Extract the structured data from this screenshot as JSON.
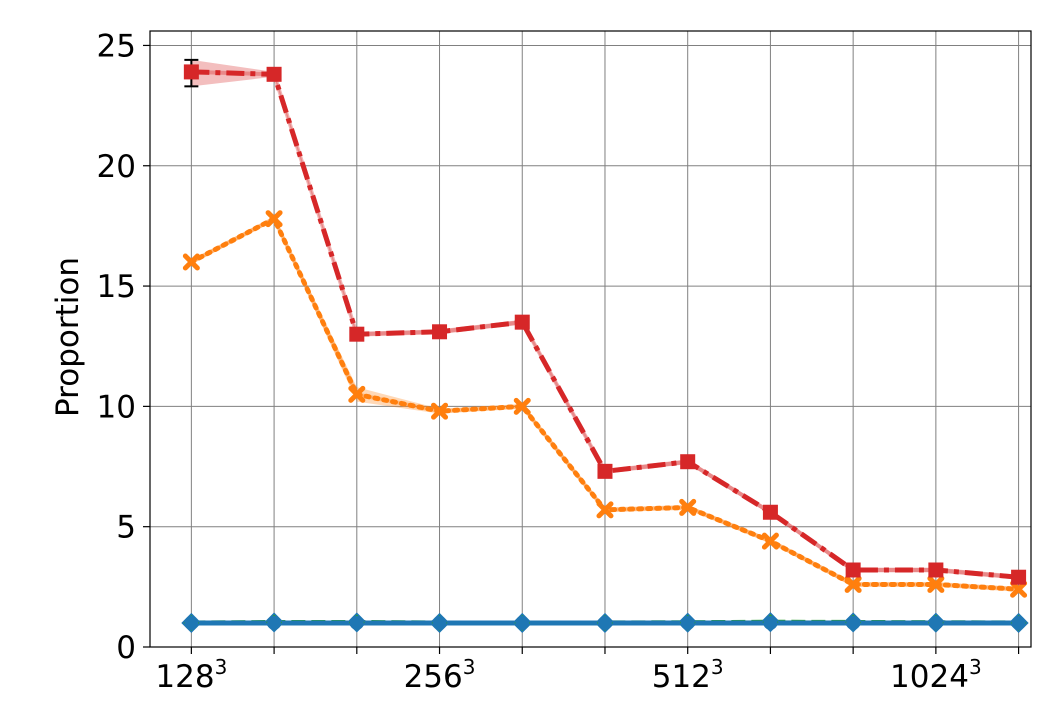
{
  "chart_data": {
    "type": "line",
    "title": "",
    "xlabel": "",
    "ylabel": "Proportion",
    "ylim": [
      0,
      25.6
    ],
    "yticks": [
      0,
      5,
      10,
      15,
      20,
      25
    ],
    "x_positions": [
      0,
      1,
      2,
      3,
      4,
      5,
      6,
      7,
      8,
      9,
      10
    ],
    "xlim": [
      -0.5,
      10.15
    ],
    "xtick_labels": [
      {
        "x": 0,
        "base": "128",
        "exp": "3"
      },
      {
        "x": 3,
        "base": "256",
        "exp": "3"
      },
      {
        "x": 6,
        "base": "512",
        "exp": "3"
      },
      {
        "x": 9,
        "base": "1024",
        "exp": "3"
      }
    ],
    "minor_xticks": [
      1,
      2,
      4,
      5,
      7,
      8,
      10
    ],
    "grid": true,
    "series": [
      {
        "color": "#d62728",
        "dash": "dashdot",
        "marker": "square",
        "values": [
          23.9,
          23.8,
          13.0,
          13.1,
          13.5,
          7.3,
          7.7,
          5.6,
          3.2,
          3.2,
          2.9
        ],
        "band": [
          [
            23.3,
            24.4
          ],
          [
            23.7,
            23.9
          ],
          [
            12.9,
            13.1
          ],
          [
            13.0,
            13.2
          ],
          [
            13.4,
            13.6
          ],
          [
            7.2,
            7.4
          ],
          [
            7.6,
            7.8
          ],
          [
            5.5,
            5.7
          ],
          [
            3.1,
            3.3
          ],
          [
            3.1,
            3.3
          ],
          [
            2.8,
            3.0
          ]
        ],
        "errorbar_index": 0,
        "errorbar": [
          23.3,
          24.4
        ]
      },
      {
        "color": "#ff7f0e",
        "dash": "dotted",
        "marker": "x",
        "values": [
          16.0,
          17.8,
          10.5,
          9.8,
          10.0,
          5.7,
          5.8,
          4.4,
          2.6,
          2.6,
          2.4
        ],
        "band": [
          [
            15.9,
            16.1
          ],
          [
            17.7,
            17.9
          ],
          [
            10.2,
            10.8
          ],
          [
            9.7,
            9.9
          ],
          [
            9.9,
            10.1
          ],
          [
            5.6,
            5.8
          ],
          [
            5.7,
            5.9
          ],
          [
            4.3,
            4.5
          ],
          [
            2.5,
            2.7
          ],
          [
            2.5,
            2.7
          ],
          [
            2.3,
            2.5
          ]
        ]
      },
      {
        "color": "#1f77b4",
        "dash": "solid",
        "marker": "circle",
        "values": [
          1.0,
          1.0,
          1.0,
          1.0,
          1.0,
          1.0,
          1.0,
          1.0,
          1.0,
          1.0,
          1.0
        ]
      },
      {
        "color": "#2ca02c",
        "dash": "dashed",
        "marker": "diamond",
        "values": [
          1.0,
          1.02,
          1.02,
          1.0,
          1.0,
          1.0,
          1.01,
          1.03,
          1.02,
          1.01,
          1.0
        ]
      }
    ]
  }
}
